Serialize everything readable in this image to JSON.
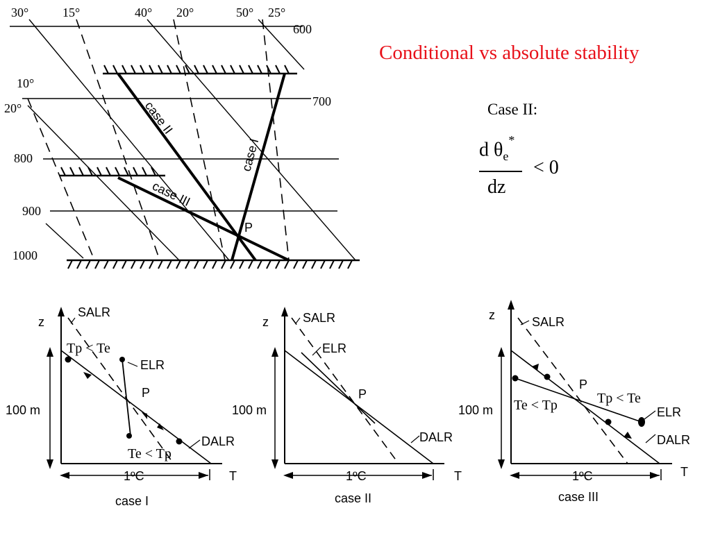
{
  "slide": {
    "title": "Conditional vs absolute stability",
    "case_label": "Case II:",
    "formula": {
      "numerator": "d θ",
      "subscript": "e",
      "superscript": "*",
      "denominator": "dz",
      "relation": "< 0"
    }
  },
  "top_diagram": {
    "pressure_labels": [
      "600",
      "700",
      "800",
      "900",
      "1000"
    ],
    "temperature_labels": [
      "30°",
      "15°",
      "40°",
      "20°",
      "50°",
      "25°",
      "10°",
      "20°"
    ],
    "case_labels": [
      "case I",
      "case II",
      "case III"
    ],
    "point_label": "P"
  },
  "panels": [
    {
      "caption": "case I",
      "z": "z",
      "t": "T",
      "height": "100 m",
      "temp": "1ºC",
      "salr": "SALR",
      "elr": "ELR",
      "dalr": "DALR",
      "p": "P",
      "cond_upper": "Tp < Te",
      "cond_lower": "Te < Tp"
    },
    {
      "caption": "case II",
      "z": "z",
      "t": "T",
      "height": "100 m",
      "temp": "1ºC",
      "salr": "SALR",
      "elr": "ELR",
      "dalr": "DALR",
      "p": "P"
    },
    {
      "caption": "case III",
      "z": "z",
      "t": "T",
      "height": "100 m",
      "temp": "1ºC",
      "salr": "SALR",
      "elr": "ELR",
      "dalr": "DALR",
      "p": "P",
      "cond_left": "Te < Tp",
      "cond_right": "Tp < Te"
    }
  ]
}
